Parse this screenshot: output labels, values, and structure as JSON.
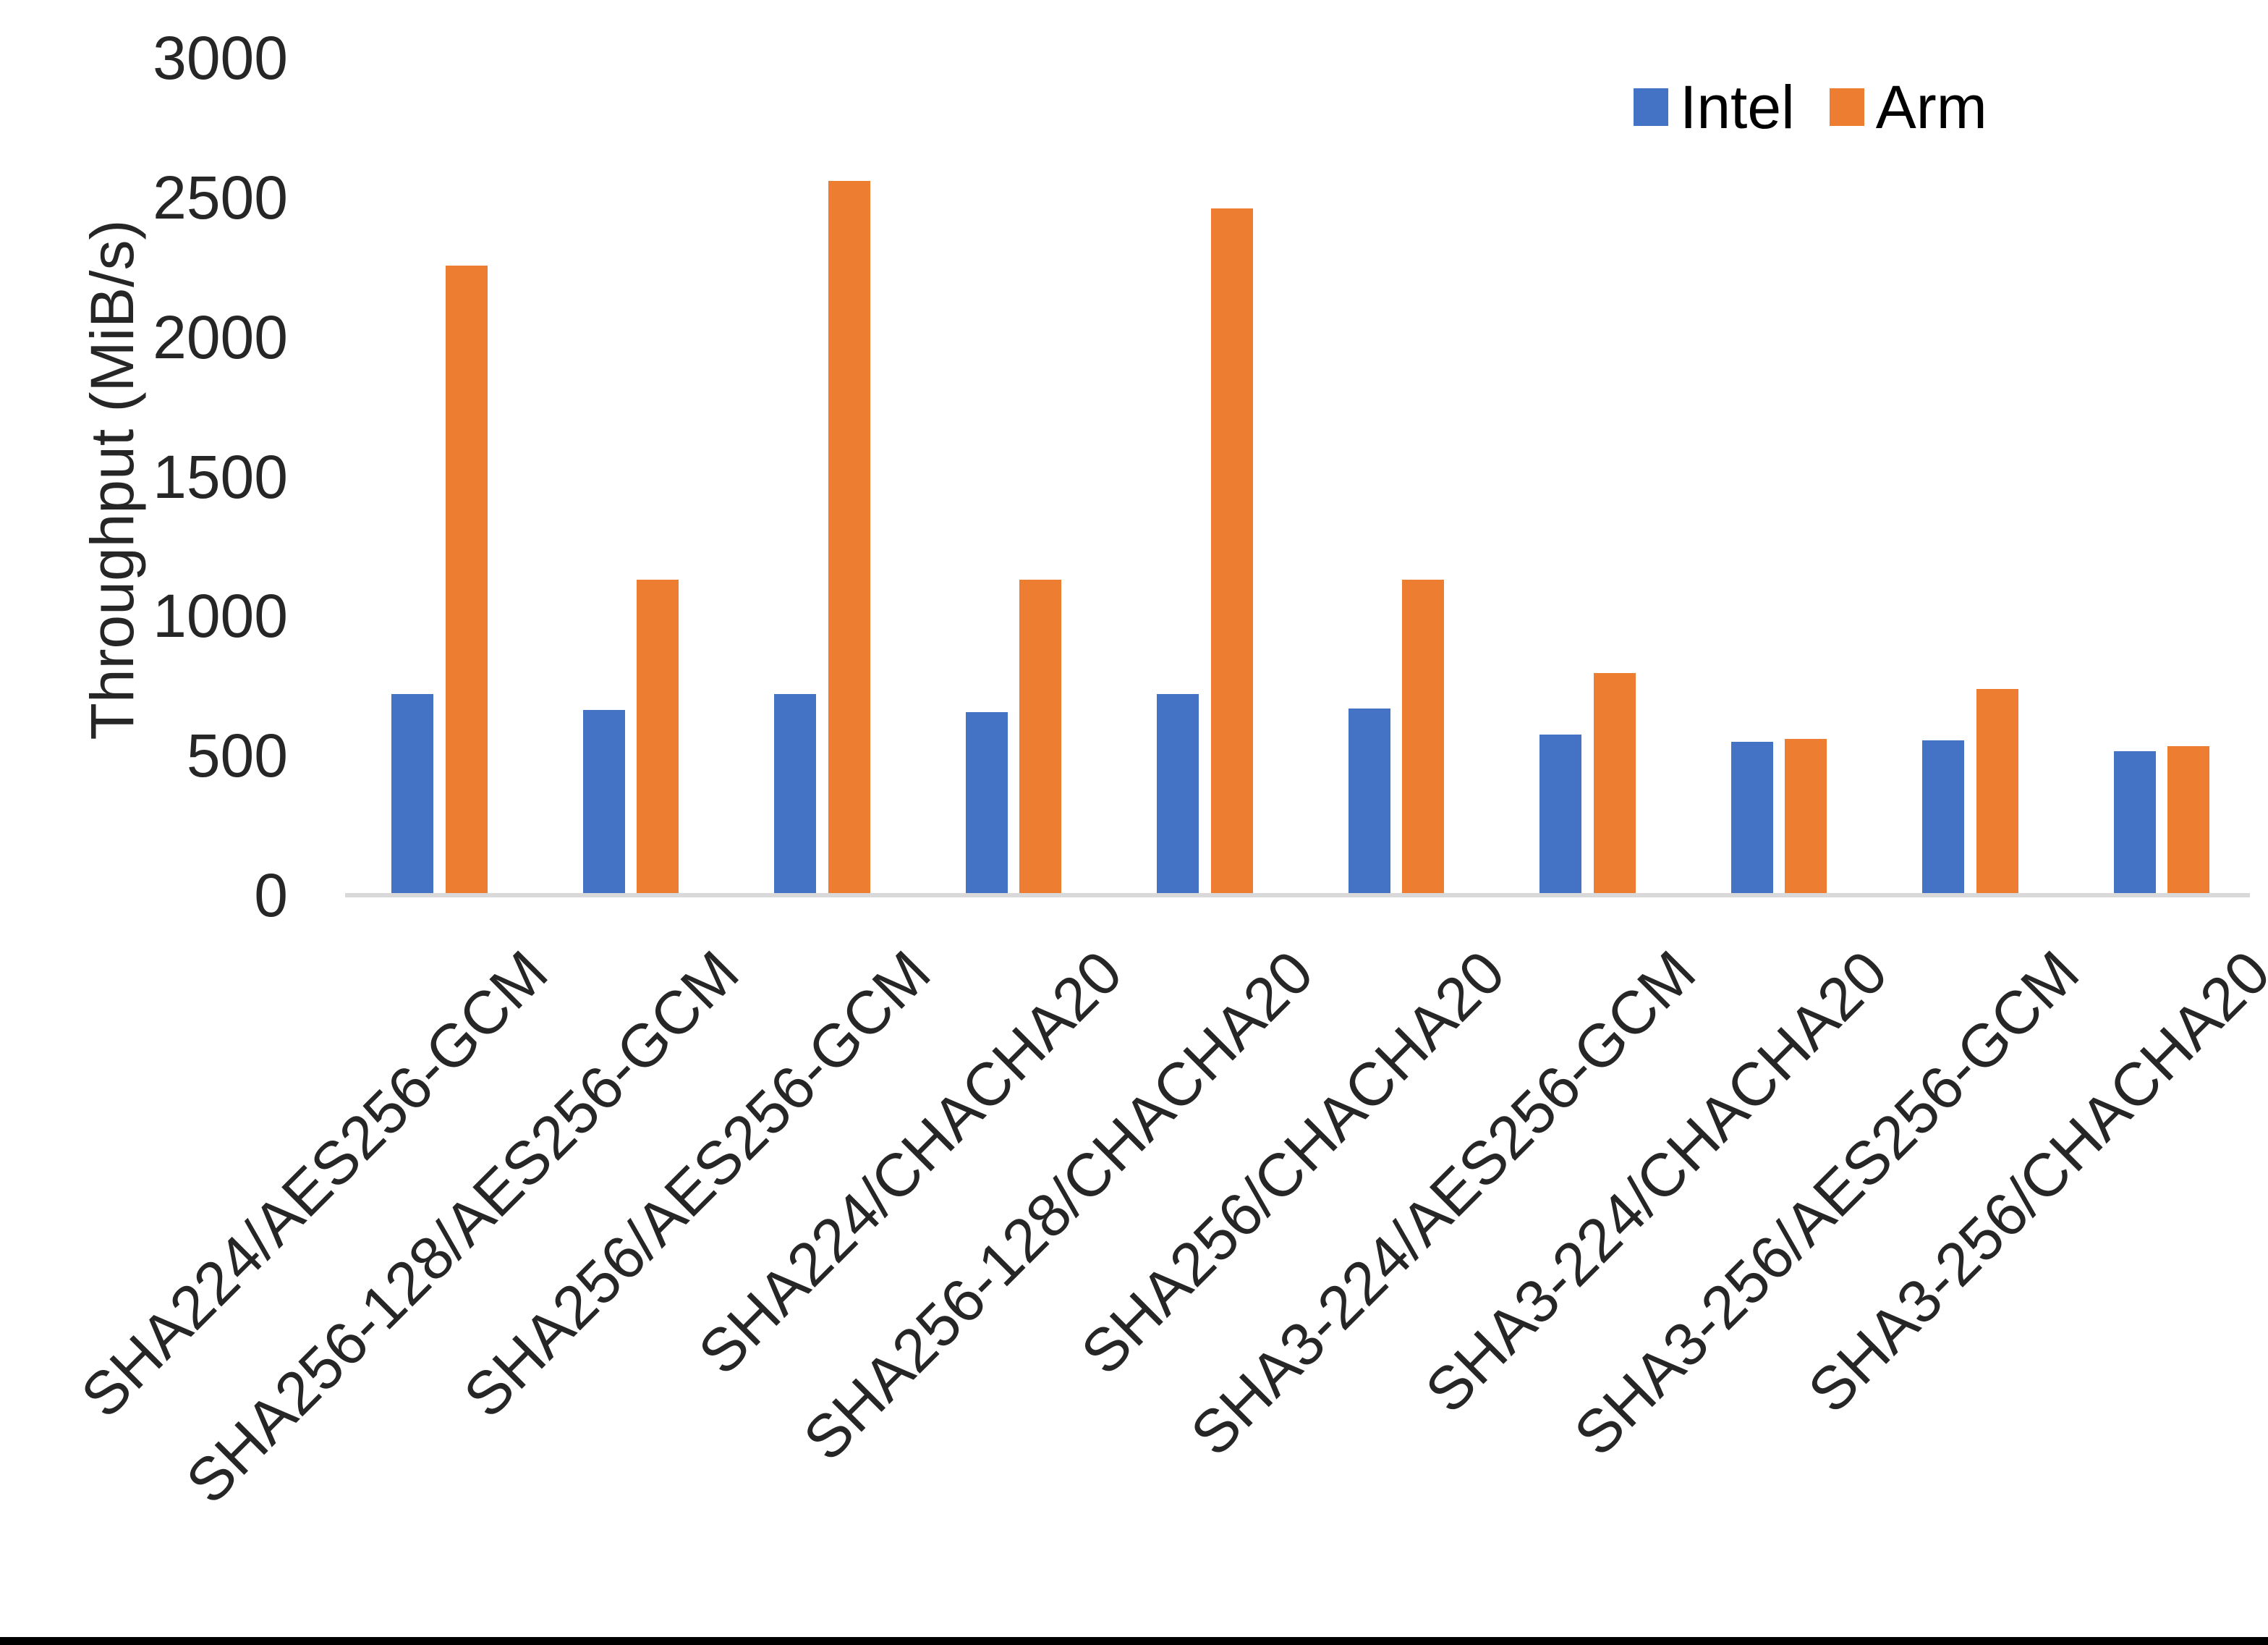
{
  "chart_data": {
    "type": "bar",
    "title": "",
    "xlabel": "",
    "ylabel": "Throughput (MiB/s)",
    "ylim": [
      0,
      3000
    ],
    "yticks": [
      0,
      500,
      1000,
      1500,
      2000,
      2500,
      3000
    ],
    "grid": false,
    "legend_position": "top-right",
    "categories": [
      "SHA224/AES256-GCM",
      "SHA256-128/AES256-GCM",
      "SHA256/AES256-GCM",
      "SHA224/CHACHA20",
      "SHA256-128/CHACHA20",
      "SHA256/CHACHA20",
      "SHA3-224/AES256-GCM",
      "SHA3-224/CHACHA20",
      "SHA3-256/AES256-GCM",
      "SHA3-256/CHACHA20"
    ],
    "series": [
      {
        "name": "Intel",
        "color": "#4472C4",
        "values": [
          720,
          665,
          720,
          655,
          720,
          670,
          575,
          550,
          555,
          515
        ]
      },
      {
        "name": "Arm",
        "color": "#ED7D31",
        "values": [
          2255,
          1130,
          2560,
          1130,
          2460,
          1130,
          795,
          560,
          740,
          535
        ]
      }
    ],
    "axis_line_color": "#D9D9D9",
    "text_color": "#262626",
    "bottom_border_color": "#000000"
  }
}
